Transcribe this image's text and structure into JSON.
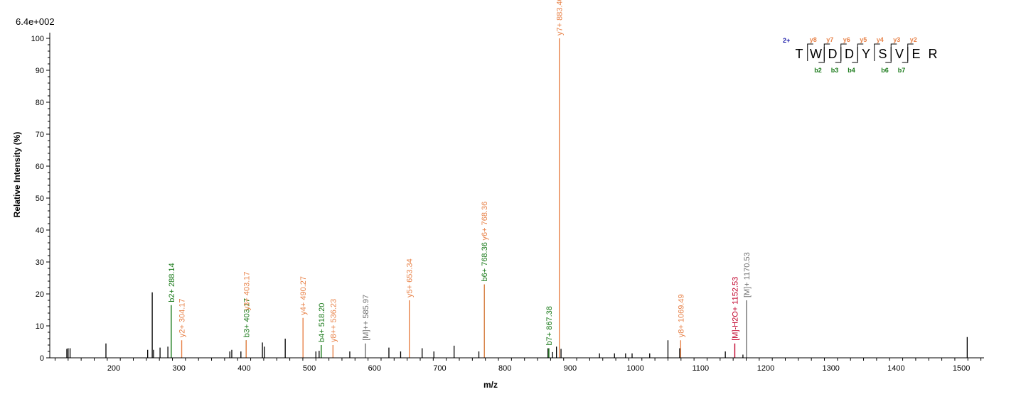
{
  "chart_data": {
    "type": "bar",
    "scale_label": "6.4e+002",
    "xlabel": "m/z",
    "ylabel": "Relative   Intensity (%)",
    "xlim": [
      70,
      1540
    ],
    "ylim": [
      0,
      102
    ],
    "x_ticks": [
      200,
      300,
      400,
      500,
      600,
      700,
      800,
      900,
      1000,
      1100,
      1200,
      1300,
      1400,
      1500
    ],
    "y_ticks": [
      0,
      10,
      20,
      30,
      40,
      50,
      60,
      70,
      80,
      90,
      100
    ],
    "colors": {
      "b": "#1a7a1a",
      "y": "#e8834a",
      "m": "#707070",
      "h2o": "#c0002a",
      "peak": "#000000",
      "charge": "#1a1aa8"
    },
    "peaks": [
      {
        "x": 128,
        "y": 2.8
      },
      {
        "x": 130,
        "y": 3.0
      },
      {
        "x": 133,
        "y": 3.0
      },
      {
        "x": 188,
        "y": 4.5
      },
      {
        "x": 252,
        "y": 2.5
      },
      {
        "x": 259,
        "y": 20.5
      },
      {
        "x": 261,
        "y": 2.5
      },
      {
        "x": 271,
        "y": 3.2
      },
      {
        "x": 283,
        "y": 3.5
      },
      {
        "x": 378,
        "y": 2.0
      },
      {
        "x": 381,
        "y": 2.5
      },
      {
        "x": 395,
        "y": 2.0
      },
      {
        "x": 428,
        "y": 4.8
      },
      {
        "x": 431,
        "y": 3.5
      },
      {
        "x": 463,
        "y": 6.0
      },
      {
        "x": 510,
        "y": 2.0
      },
      {
        "x": 515,
        "y": 2.2
      },
      {
        "x": 562,
        "y": 2.0
      },
      {
        "x": 622,
        "y": 3.2
      },
      {
        "x": 640,
        "y": 2.0
      },
      {
        "x": 673,
        "y": 3.0
      },
      {
        "x": 691,
        "y": 2.0
      },
      {
        "x": 722,
        "y": 3.8
      },
      {
        "x": 760,
        "y": 2.0
      },
      {
        "x": 866,
        "y": 3.0
      },
      {
        "x": 873,
        "y": 1.8
      },
      {
        "x": 879,
        "y": 3.5
      },
      {
        "x": 886,
        "y": 2.8
      },
      {
        "x": 945,
        "y": 1.4
      },
      {
        "x": 968,
        "y": 1.4
      },
      {
        "x": 985,
        "y": 1.4
      },
      {
        "x": 995,
        "y": 1.4
      },
      {
        "x": 1022,
        "y": 1.4
      },
      {
        "x": 1050,
        "y": 5.5
      },
      {
        "x": 1068,
        "y": 3.0
      },
      {
        "x": 1138,
        "y": 2.0
      },
      {
        "x": 1165,
        "y": 1.0
      },
      {
        "x": 1509,
        "y": 6.5
      }
    ],
    "annotated": [
      {
        "x": 288.14,
        "y": 16.5,
        "label": "b2+ 288.14",
        "kind": "b"
      },
      {
        "x": 304.17,
        "y": 5.5,
        "label": "y2+ 304.17",
        "kind": "y"
      },
      {
        "x": 403.17,
        "y": 5.5,
        "label": "b3+ 403.17",
        "kind": "b"
      },
      {
        "x": 403.17,
        "y": 5.5,
        "label": "y3+ 403.17",
        "kind": "y",
        "offset": 38
      },
      {
        "x": 490.27,
        "y": 12.5,
        "label": "y4+ 490.27",
        "kind": "y"
      },
      {
        "x": 518.2,
        "y": 4.0,
        "label": "b4+ 518.20",
        "kind": "b"
      },
      {
        "x": 536.23,
        "y": 4.0,
        "label": "y8++ 536.23",
        "kind": "y"
      },
      {
        "x": 585.97,
        "y": 4.5,
        "label": "[M]++ 585.97",
        "kind": "m"
      },
      {
        "x": 653.34,
        "y": 18.0,
        "label": "y5+ 653.34",
        "kind": "y"
      },
      {
        "x": 768.36,
        "y": 23.0,
        "label": "b6+ 768.36",
        "kind": "b"
      },
      {
        "x": 768.36,
        "y": 23.0,
        "label": "y6+ 768.36",
        "kind": "y",
        "offset": 58
      },
      {
        "x": 867.38,
        "y": 3.0,
        "label": "b7+ 867.38",
        "kind": "b"
      },
      {
        "x": 883.4,
        "y": 100,
        "label": "y7+ 883.40",
        "kind": "y"
      },
      {
        "x": 1069.49,
        "y": 5.5,
        "label": "y8+ 1069.49",
        "kind": "y"
      },
      {
        "x": 1152.53,
        "y": 4.5,
        "label": "[M]-H2O+ 1152.53",
        "kind": "h2o"
      },
      {
        "x": 1170.53,
        "y": 18.0,
        "label": "[M]+ 1170.53",
        "kind": "m"
      }
    ],
    "sequence": {
      "charge": "2+",
      "residues": [
        "T",
        "W",
        "D",
        "D",
        "Y",
        "S",
        "V",
        "E",
        "R"
      ],
      "y_ions": [
        {
          "after": 1,
          "label": "y8"
        },
        {
          "after": 2,
          "label": "y7"
        },
        {
          "after": 3,
          "label": "y6"
        },
        {
          "after": 4,
          "label": "y5"
        },
        {
          "after": 5,
          "label": "y4"
        },
        {
          "after": 6,
          "label": "y3"
        },
        {
          "after": 7,
          "label": "y2"
        }
      ],
      "b_ions": [
        {
          "after": 2,
          "label": "b2"
        },
        {
          "after": 3,
          "label": "b3"
        },
        {
          "after": 4,
          "label": "b4"
        },
        {
          "after": 6,
          "label": "b6"
        },
        {
          "after": 7,
          "label": "b7"
        }
      ]
    }
  }
}
